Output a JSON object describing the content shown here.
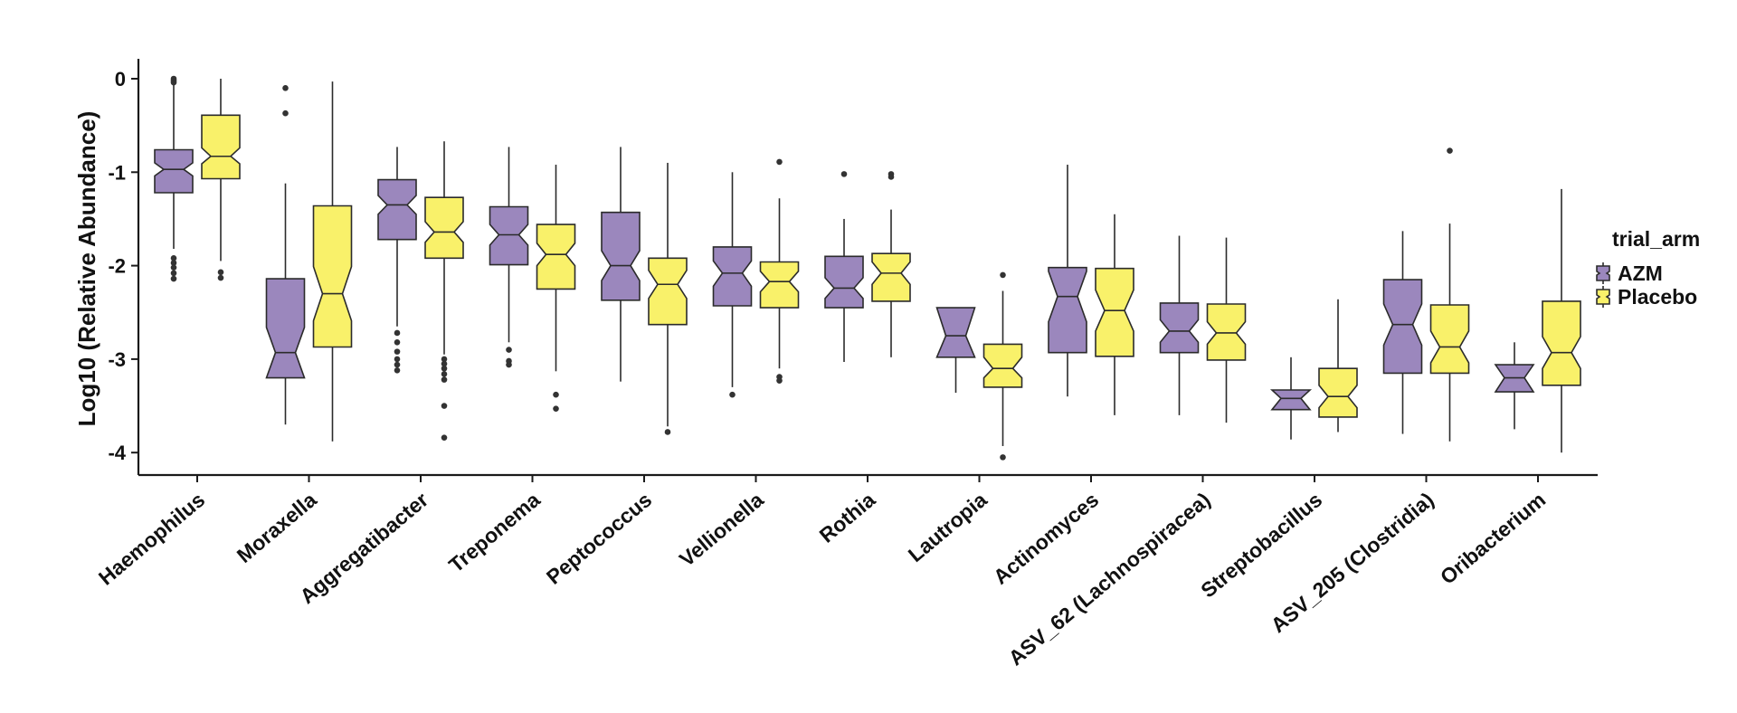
{
  "chart_data": {
    "type": "boxplot",
    "title": "",
    "xlabel": "",
    "ylabel": "Log10 (Relative Abundance)",
    "ylim": [
      -4.25,
      0.2
    ],
    "yticks": [
      0,
      -1,
      -2,
      -3,
      -4
    ],
    "ytick_labels": [
      "0",
      "-1",
      "-2",
      "-3",
      "-4"
    ],
    "legend": {
      "title": "trial_arm",
      "position": "right",
      "entries": [
        {
          "name": "AZM",
          "color": "#9b87bd"
        },
        {
          "name": "Placebo",
          "color": "#f9f16a"
        }
      ]
    },
    "categories": [
      "Haemophilus",
      "Moraxella",
      "Aggregatibacter",
      "Treponema",
      "Peptococcus",
      "Vellionella",
      "Rothia",
      "Lautropia",
      "Actinomyces",
      "ASV_62 (Lachnospiracea)",
      "Streptobacillus",
      "ASV_205 (Clostridia)",
      "Oribacterium"
    ],
    "series": [
      {
        "name": "AZM",
        "color": "#9b87bd",
        "boxes": [
          {
            "q1": -1.22,
            "median": -0.97,
            "q3": -0.76,
            "notch_low": -1.04,
            "notch_high": -0.9,
            "whisker_low": -1.82,
            "whisker_high": 0.0,
            "outliers": [
              -1.92,
              -1.97,
              -2.02,
              -2.08,
              -2.14,
              0.0,
              -0.02,
              -0.04
            ]
          },
          {
            "q1": -3.2,
            "median": -2.93,
            "q3": -2.14,
            "notch_low": -3.2,
            "notch_high": -2.66,
            "whisker_low": -3.7,
            "whisker_high": -1.12,
            "outliers": [
              -0.1,
              -0.37
            ]
          },
          {
            "q1": -1.72,
            "median": -1.35,
            "q3": -1.08,
            "notch_low": -1.45,
            "notch_high": -1.25,
            "whisker_low": -2.65,
            "whisker_high": -0.73,
            "outliers": [
              -2.72,
              -2.82,
              -2.92,
              -3.0,
              -3.06,
              -3.12
            ]
          },
          {
            "q1": -1.99,
            "median": -1.67,
            "q3": -1.37,
            "notch_low": -1.78,
            "notch_high": -1.56,
            "whisker_low": -2.82,
            "whisker_high": -0.73,
            "outliers": [
              -2.9,
              -3.02,
              -3.06
            ]
          },
          {
            "q1": -2.37,
            "median": -2.0,
            "q3": -1.43,
            "notch_low": -2.16,
            "notch_high": -1.84,
            "whisker_low": -3.24,
            "whisker_high": -0.73,
            "outliers": []
          },
          {
            "q1": -2.43,
            "median": -2.08,
            "q3": -1.8,
            "notch_low": -2.22,
            "notch_high": -1.95,
            "whisker_low": -3.3,
            "whisker_high": -1.0,
            "outliers": [
              -3.38
            ]
          },
          {
            "q1": -2.45,
            "median": -2.24,
            "q3": -1.9,
            "notch_low": -2.35,
            "notch_high": -2.13,
            "whisker_low": -3.03,
            "whisker_high": -1.5,
            "outliers": [
              -1.02
            ]
          },
          {
            "q1": -2.98,
            "median": -2.75,
            "q3": -2.45,
            "notch_low": -2.98,
            "notch_high": -2.45,
            "whisker_low": -3.36,
            "whisker_high": -2.45,
            "outliers": []
          },
          {
            "q1": -2.93,
            "median": -2.33,
            "q3": -2.02,
            "notch_low": -2.6,
            "notch_high": -2.06,
            "whisker_low": -3.4,
            "whisker_high": -0.92,
            "outliers": []
          },
          {
            "q1": -2.93,
            "median": -2.7,
            "q3": -2.4,
            "notch_low": -2.82,
            "notch_high": -2.58,
            "whisker_low": -3.6,
            "whisker_high": -1.68,
            "outliers": []
          },
          {
            "q1": -3.54,
            "median": -3.42,
            "q3": -3.33,
            "notch_low": -3.54,
            "notch_high": -3.33,
            "whisker_low": -3.86,
            "whisker_high": -2.98,
            "outliers": []
          },
          {
            "q1": -3.15,
            "median": -2.63,
            "q3": -2.15,
            "notch_low": -2.85,
            "notch_high": -2.41,
            "whisker_low": -3.8,
            "whisker_high": -1.63,
            "outliers": []
          },
          {
            "q1": -3.35,
            "median": -3.2,
            "q3": -3.06,
            "notch_low": -3.35,
            "notch_high": -3.06,
            "whisker_low": -3.75,
            "whisker_high": -2.82,
            "outliers": []
          }
        ]
      },
      {
        "name": "Placebo",
        "color": "#f9f16a",
        "boxes": [
          {
            "q1": -1.07,
            "median": -0.83,
            "q3": -0.39,
            "notch_low": -0.91,
            "notch_high": -0.74,
            "whisker_low": -1.95,
            "whisker_high": 0.0,
            "outliers": [
              -2.07,
              -2.13
            ]
          },
          {
            "q1": -2.87,
            "median": -2.3,
            "q3": -1.36,
            "notch_low": -2.59,
            "notch_high": -2.01,
            "whisker_low": -3.88,
            "whisker_high": -0.03,
            "outliers": []
          },
          {
            "q1": -1.92,
            "median": -1.64,
            "q3": -1.27,
            "notch_low": -1.75,
            "notch_high": -1.53,
            "whisker_low": -2.95,
            "whisker_high": -0.67,
            "outliers": [
              -3.0,
              -3.05,
              -3.1,
              -3.16,
              -3.22,
              -3.5,
              -3.84
            ]
          },
          {
            "q1": -2.25,
            "median": -1.88,
            "q3": -1.56,
            "notch_low": -2.0,
            "notch_high": -1.76,
            "whisker_low": -3.13,
            "whisker_high": -0.92,
            "outliers": [
              -3.38,
              -3.53
            ]
          },
          {
            "q1": -2.63,
            "median": -2.2,
            "q3": -1.92,
            "notch_low": -2.35,
            "notch_high": -2.05,
            "whisker_low": -3.72,
            "whisker_high": -0.9,
            "outliers": [
              -3.78
            ]
          },
          {
            "q1": -2.45,
            "median": -2.17,
            "q3": -1.96,
            "notch_low": -2.28,
            "notch_high": -2.06,
            "whisker_low": -3.1,
            "whisker_high": -1.28,
            "outliers": [
              -3.19,
              -3.23,
              -0.89
            ]
          },
          {
            "q1": -2.38,
            "median": -2.08,
            "q3": -1.87,
            "notch_low": -2.2,
            "notch_high": -1.96,
            "whisker_low": -2.98,
            "whisker_high": -1.4,
            "outliers": [
              -1.02,
              -1.05
            ]
          },
          {
            "q1": -3.3,
            "median": -3.1,
            "q3": -2.84,
            "notch_low": -3.2,
            "notch_high": -2.98,
            "whisker_low": -3.93,
            "whisker_high": -2.27,
            "outliers": [
              -2.1,
              -4.05
            ]
          },
          {
            "q1": -2.97,
            "median": -2.48,
            "q3": -2.03,
            "notch_low": -2.7,
            "notch_high": -2.26,
            "whisker_low": -3.6,
            "whisker_high": -1.45,
            "outliers": []
          },
          {
            "q1": -3.01,
            "median": -2.72,
            "q3": -2.41,
            "notch_low": -2.84,
            "notch_high": -2.6,
            "whisker_low": -3.68,
            "whisker_high": -1.7,
            "outliers": []
          },
          {
            "q1": -3.62,
            "median": -3.4,
            "q3": -3.1,
            "notch_low": -3.52,
            "notch_high": -3.28,
            "whisker_low": -3.78,
            "whisker_high": -2.36,
            "outliers": []
          },
          {
            "q1": -3.15,
            "median": -2.87,
            "q3": -2.42,
            "notch_low": -3.04,
            "notch_high": -2.7,
            "whisker_low": -3.88,
            "whisker_high": -1.55,
            "outliers": [
              -0.77
            ]
          },
          {
            "q1": -3.28,
            "median": -2.93,
            "q3": -2.38,
            "notch_low": -3.1,
            "notch_high": -2.76,
            "whisker_low": -4.0,
            "whisker_high": -1.18,
            "outliers": []
          }
        ]
      }
    ]
  }
}
